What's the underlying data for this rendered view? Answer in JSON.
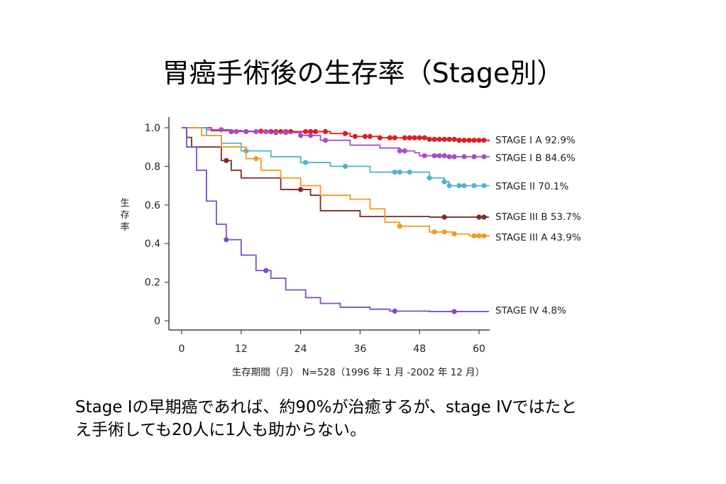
{
  "slide": {
    "title": "胃癌手術後の生存率（Stage別）",
    "caption_line1": "Stage Iの早期癌であれば、約90%が治癒するが、stage IVではたと",
    "caption_line2": "え手術しても20人に1人も助からない。"
  },
  "chart_data": {
    "type": "line",
    "ylabel": "生存率",
    "xlabel": "生存期間（月） N=528（1996 年 1 月 -2002 年 12 月）",
    "xlim": [
      0,
      62
    ],
    "ylim": [
      0,
      1.0
    ],
    "xticks": [
      0,
      12,
      24,
      36,
      48,
      60
    ],
    "yticks": [
      {
        "v": 1.0,
        "label": "1.0"
      },
      {
        "v": 0.8,
        "label": "0.8"
      },
      {
        "v": 0.6,
        "label": "0.6"
      },
      {
        "v": 0.4,
        "label": "0.4"
      },
      {
        "v": 0.2,
        "label": "0.2"
      },
      {
        "v": 0,
        "label": "0"
      }
    ],
    "series": [
      {
        "name": "STAGE I A 92.9%",
        "color": "#dd1f1f",
        "points": [
          [
            0,
            1.0
          ],
          [
            6,
            0.985
          ],
          [
            12,
            0.982
          ],
          [
            18,
            0.98
          ],
          [
            24,
            0.98
          ],
          [
            30,
            0.97
          ],
          [
            34,
            0.955
          ],
          [
            40,
            0.948
          ],
          [
            50,
            0.94
          ],
          [
            56,
            0.935
          ],
          [
            62,
            0.929
          ]
        ],
        "censor": [
          16,
          18,
          19,
          20,
          21,
          22,
          25,
          26,
          27,
          29,
          33,
          35,
          37,
          38,
          40,
          42,
          43,
          45,
          46,
          47,
          48,
          49,
          50,
          51,
          52,
          53,
          54,
          55,
          56,
          57,
          58,
          59,
          60,
          61
        ]
      },
      {
        "name": "STAGE I B 84.6%",
        "color": "#a64ec4",
        "points": [
          [
            0,
            1.0
          ],
          [
            5,
            0.99
          ],
          [
            10,
            0.98
          ],
          [
            18,
            0.975
          ],
          [
            24,
            0.96
          ],
          [
            28,
            0.935
          ],
          [
            34,
            0.91
          ],
          [
            40,
            0.895
          ],
          [
            44,
            0.88
          ],
          [
            47,
            0.87
          ],
          [
            48,
            0.855
          ],
          [
            54,
            0.85
          ],
          [
            62,
            0.846
          ]
        ],
        "censor": [
          8,
          10,
          11,
          13,
          15,
          17,
          19,
          21,
          24,
          26,
          29,
          44,
          45,
          49,
          51,
          52,
          53,
          54,
          55,
          57,
          59,
          61
        ]
      },
      {
        "name": "STAGE II   70.1%",
        "color": "#4fb6c9",
        "points": [
          [
            0,
            1.0
          ],
          [
            5,
            0.96
          ],
          [
            8,
            0.92
          ],
          [
            12,
            0.88
          ],
          [
            18,
            0.85
          ],
          [
            24,
            0.82
          ],
          [
            30,
            0.8
          ],
          [
            38,
            0.77
          ],
          [
            46,
            0.77
          ],
          [
            50,
            0.74
          ],
          [
            53,
            0.72
          ],
          [
            54,
            0.7
          ],
          [
            62,
            0.701
          ]
        ],
        "censor": [
          13,
          25,
          33,
          43,
          44,
          46,
          50,
          53,
          54,
          56,
          57,
          59,
          61
        ]
      },
      {
        "name": "STAGE III B 53.7%",
        "color": "#7b2a2a",
        "points": [
          [
            0,
            1.0
          ],
          [
            1,
            0.95
          ],
          [
            2,
            0.9
          ],
          [
            8,
            0.83
          ],
          [
            10,
            0.78
          ],
          [
            12,
            0.74
          ],
          [
            20,
            0.68
          ],
          [
            26,
            0.65
          ],
          [
            28,
            0.57
          ],
          [
            36,
            0.54
          ],
          [
            50,
            0.537
          ],
          [
            62,
            0.537
          ]
        ],
        "censor": [
          9,
          24,
          53,
          60,
          61
        ]
      },
      {
        "name": "STAGE III A 43.9%",
        "color": "#f29a1f",
        "points": [
          [
            0,
            1.0
          ],
          [
            4,
            0.96
          ],
          [
            8,
            0.9
          ],
          [
            13,
            0.84
          ],
          [
            16,
            0.78
          ],
          [
            20,
            0.74
          ],
          [
            24,
            0.7
          ],
          [
            28,
            0.65
          ],
          [
            34,
            0.63
          ],
          [
            38,
            0.58
          ],
          [
            41,
            0.51
          ],
          [
            44,
            0.49
          ],
          [
            50,
            0.46
          ],
          [
            55,
            0.45
          ],
          [
            58,
            0.44
          ],
          [
            62,
            0.439
          ]
        ],
        "censor": [
          15,
          44,
          51,
          53,
          55,
          59,
          60,
          61
        ]
      },
      {
        "name": "STAGE IV     4.8%",
        "color": "#7b4fc0",
        "points": [
          [
            0,
            1.0
          ],
          [
            1,
            0.9
          ],
          [
            3,
            0.78
          ],
          [
            5,
            0.62
          ],
          [
            7,
            0.5
          ],
          [
            9,
            0.42
          ],
          [
            12,
            0.34
          ],
          [
            15,
            0.26
          ],
          [
            18,
            0.22
          ],
          [
            21,
            0.16
          ],
          [
            25,
            0.12
          ],
          [
            28,
            0.09
          ],
          [
            32,
            0.07
          ],
          [
            38,
            0.06
          ],
          [
            42,
            0.05
          ],
          [
            50,
            0.048
          ],
          [
            62,
            0.048
          ]
        ],
        "censor": [
          9,
          17,
          43,
          55
        ]
      }
    ]
  }
}
